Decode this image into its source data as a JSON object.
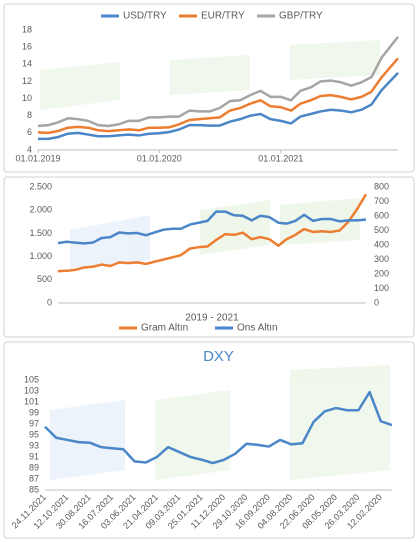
{
  "chart_data": [
    {
      "type": "line",
      "legend": "top",
      "x": [
        "2019-01-01",
        "2019-02-01",
        "2019-03-01",
        "2019-04-01",
        "2019-05-01",
        "2019-06-01",
        "2019-07-01",
        "2019-08-01",
        "2019-09-01",
        "2019-10-01",
        "2019-11-01",
        "2019-12-01",
        "2020-01-01",
        "2020-02-01",
        "2020-03-01",
        "2020-04-01",
        "2020-05-01",
        "2020-06-01",
        "2020-07-01",
        "2020-08-01",
        "2020-09-01",
        "2020-10-01",
        "2020-11-01",
        "2020-12-01",
        "2021-01-01",
        "2021-02-01",
        "2021-03-01",
        "2021-04-01",
        "2021-05-01",
        "2021-06-01",
        "2021-07-01",
        "2021-08-01",
        "2021-09-01",
        "2021-10-01",
        "2021-11-01",
        "2021-12-20"
      ],
      "xlim": [
        "2019-01-01",
        "2021-12-20"
      ],
      "xticks": [
        {
          "value": "2019-01-01",
          "label": "01.01.2019"
        },
        {
          "value": "2020-01-01",
          "label": "01.01.2020"
        },
        {
          "value": "2021-01-01",
          "label": "01.01.2021"
        }
      ],
      "ylim": [
        4,
        18
      ],
      "yticks": [
        4,
        6,
        8,
        10,
        12,
        14,
        16,
        18
      ],
      "series": [
        {
          "name": "USD/TRY",
          "color": "#4a86c8",
          "values": [
            5.3,
            5.3,
            5.5,
            5.9,
            6.0,
            5.8,
            5.6,
            5.6,
            5.7,
            5.8,
            5.7,
            5.9,
            5.95,
            6.1,
            6.4,
            6.9,
            6.9,
            6.85,
            6.85,
            7.3,
            7.6,
            8.0,
            8.2,
            7.6,
            7.4,
            7.1,
            7.9,
            8.2,
            8.5,
            8.7,
            8.6,
            8.4,
            8.7,
            9.3,
            11.0,
            13.0
          ]
        },
        {
          "name": "EUR/TRY",
          "color": "#ed7d31",
          "values": [
            6.05,
            6.0,
            6.2,
            6.6,
            6.7,
            6.6,
            6.3,
            6.2,
            6.3,
            6.4,
            6.3,
            6.6,
            6.6,
            6.65,
            7.0,
            7.5,
            7.6,
            7.7,
            7.8,
            8.6,
            8.9,
            9.4,
            9.8,
            9.1,
            9.0,
            8.6,
            9.4,
            9.8,
            10.3,
            10.4,
            10.2,
            9.9,
            10.2,
            10.8,
            12.5,
            14.7
          ]
        },
        {
          "name": "GBP/TRY",
          "color": "#a5a5a5",
          "values": [
            6.8,
            6.9,
            7.2,
            7.7,
            7.6,
            7.4,
            6.9,
            6.8,
            7.0,
            7.4,
            7.4,
            7.8,
            7.8,
            7.9,
            7.9,
            8.6,
            8.5,
            8.5,
            8.9,
            9.7,
            9.8,
            10.4,
            10.9,
            10.2,
            10.2,
            9.8,
            10.9,
            11.3,
            12.0,
            12.1,
            11.9,
            11.5,
            11.9,
            12.5,
            14.8,
            17.2
          ]
        }
      ]
    },
    {
      "type": "line",
      "legend": "bottom",
      "x_label": "2019 - 2021",
      "x": [
        "2019-01",
        "2019-02",
        "2019-03",
        "2019-04",
        "2019-05",
        "2019-06",
        "2019-07",
        "2019-08",
        "2019-09",
        "2019-10",
        "2019-11",
        "2019-12",
        "2020-01",
        "2020-02",
        "2020-03",
        "2020-04",
        "2020-05",
        "2020-06",
        "2020-07",
        "2020-08",
        "2020-09",
        "2020-10",
        "2020-11",
        "2020-12",
        "2021-01",
        "2021-02",
        "2021-03",
        "2021-04",
        "2021-05",
        "2021-06",
        "2021-07",
        "2021-08",
        "2021-09",
        "2021-10",
        "2021-11",
        "2021-12"
      ],
      "xlim": [
        "2019-01",
        "2021-12"
      ],
      "ylim": [
        0,
        2500
      ],
      "yticks": [
        0,
        500,
        {
          "value": 1000,
          "label": "1.000"
        },
        {
          "value": 1500,
          "label": "1.500"
        },
        {
          "value": 2000,
          "label": "2.000"
        },
        {
          "value": 2500,
          "label": "2.500"
        }
      ],
      "y2lim": [
        0,
        800
      ],
      "y2ticks": [
        0,
        100,
        200,
        300,
        400,
        500,
        600,
        700,
        800
      ],
      "series": [
        {
          "name": "Gram Altın",
          "color": "#ed7d31",
          "axis": "y2",
          "values": [
            220,
            222,
            228,
            245,
            250,
            265,
            255,
            280,
            275,
            280,
            270,
            285,
            300,
            315,
            330,
            375,
            385,
            390,
            435,
            475,
            470,
            485,
            440,
            455,
            440,
            395,
            440,
            470,
            510,
            490,
            495,
            490,
            500,
            560,
            650,
            750
          ]
        },
        {
          "name": "Ons Altın",
          "color": "#4a86c8",
          "values": [
            1290,
            1320,
            1300,
            1285,
            1300,
            1400,
            1420,
            1520,
            1500,
            1510,
            1460,
            1520,
            1580,
            1600,
            1600,
            1690,
            1730,
            1770,
            1970,
            1970,
            1890,
            1880,
            1780,
            1880,
            1850,
            1730,
            1710,
            1770,
            1900,
            1770,
            1810,
            1810,
            1760,
            1780,
            1780,
            1800
          ]
        }
      ]
    },
    {
      "type": "line",
      "title": "DXY",
      "title_color": "#4a86c8",
      "color": "#4a86c8",
      "categories": [
        "24.11.2021",
        null,
        "12.10.2021",
        null,
        "30.08.2021",
        null,
        "16.07.2021",
        null,
        "03.06.2021",
        null,
        "21.04.2021",
        null,
        "09.03.2021",
        null,
        "25.01.2021",
        null,
        "11.12.2020",
        null,
        "29.10.2020",
        null,
        "16.09.2020",
        null,
        "04.08.2020",
        null,
        "22.06.2020",
        null,
        "08.05.2020",
        null,
        "26.03.2020",
        null,
        "12.02.2020",
        null
      ],
      "values": [
        96.5,
        94.5,
        94.1,
        93.7,
        93.6,
        92.8,
        92.6,
        92.4,
        90.2,
        90.0,
        91.0,
        92.8,
        91.9,
        91.0,
        90.5,
        89.9,
        90.5,
        91.6,
        93.4,
        93.2,
        92.9,
        94.1,
        93.3,
        93.5,
        97.4,
        99.3,
        99.9,
        99.5,
        99.5,
        102.8,
        97.5,
        96.8
      ],
      "ylim": [
        85,
        105
      ],
      "yticks": [
        85,
        87,
        89,
        91,
        93,
        95,
        97,
        99,
        101,
        103,
        105
      ]
    }
  ]
}
